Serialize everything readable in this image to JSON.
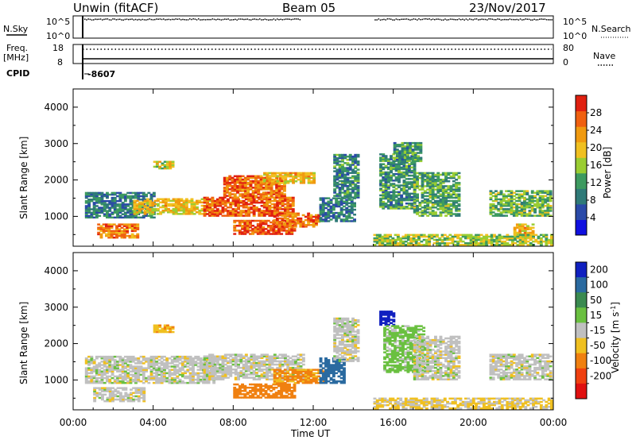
{
  "header": {
    "station": "Unwin (fitACF)",
    "beam": "Beam 05",
    "date": "23/Nov/2017"
  },
  "strip": {
    "nsky_label": "N.Sky",
    "nsky_ticks": [
      "10^5",
      "10^0"
    ],
    "nsearch_label": "N.Search",
    "nsearch_ticks": [
      "10^5",
      "10^0"
    ],
    "freq_label": "Freq.",
    "freq_unit": "[MHz]",
    "freq_ticks": [
      "18",
      "8"
    ],
    "nave_label": "Nave",
    "nave_ticks": [
      "80",
      "0"
    ],
    "cpid_label": "CPID",
    "cpid_value": "-8607"
  },
  "chart_data": [
    {
      "type": "heatmap",
      "panel": "power",
      "ylabel": "Slant Range [km]",
      "yticks": [
        1000,
        2000,
        3000,
        4000
      ],
      "ylim": [
        180,
        4500
      ],
      "xlim": [
        0,
        24
      ],
      "colorbar_label": "Power [dB]",
      "colorbar_ticks": [
        4,
        8,
        12,
        16,
        20,
        24,
        28
      ],
      "colorbar_range": [
        0,
        32
      ],
      "colormap": [
        "#1010e0",
        "#2a4aa8",
        "#2f7a78",
        "#3d9a60",
        "#9acd32",
        "#f0c020",
        "#f09a10",
        "#f06010",
        "#e02010"
      ],
      "echo_regions": [
        {
          "t0": 0.2,
          "t1": 4.0,
          "r0": 950,
          "r1": 1650,
          "level": 9
        },
        {
          "t0": 1.2,
          "t1": 3.2,
          "r0": 400,
          "r1": 800,
          "level": 25
        },
        {
          "t0": 3.0,
          "t1": 7.0,
          "r0": 1050,
          "r1": 1500,
          "level": 20
        },
        {
          "t0": 4.0,
          "t1": 5.0,
          "r0": 2300,
          "r1": 2500,
          "level": 18
        },
        {
          "t0": 6.5,
          "t1": 11.0,
          "r0": 1000,
          "r1": 1500,
          "level": 27
        },
        {
          "t0": 7.5,
          "t1": 10.5,
          "r0": 1500,
          "r1": 2100,
          "level": 26
        },
        {
          "t0": 8.0,
          "t1": 11.0,
          "r0": 500,
          "r1": 900,
          "level": 28
        },
        {
          "t0": 9.5,
          "t1": 12.0,
          "r0": 1900,
          "r1": 2200,
          "level": 21
        },
        {
          "t0": 10.0,
          "t1": 12.3,
          "r0": 700,
          "r1": 1100,
          "level": 26
        },
        {
          "t0": 12.3,
          "t1": 14.0,
          "r0": 850,
          "r1": 1500,
          "level": 9
        },
        {
          "t0": 13.0,
          "t1": 14.2,
          "r0": 1500,
          "r1": 2700,
          "level": 10
        },
        {
          "t0": 15.3,
          "t1": 17.0,
          "r0": 1200,
          "r1": 2700,
          "level": 11
        },
        {
          "t0": 16.0,
          "t1": 17.3,
          "r0": 2500,
          "r1": 3000,
          "level": 11
        },
        {
          "t0": 17.0,
          "t1": 19.3,
          "r0": 1000,
          "r1": 2200,
          "level": 13
        },
        {
          "t0": 20.8,
          "t1": 24.0,
          "r0": 1000,
          "r1": 1700,
          "level": 14
        },
        {
          "t0": 22.0,
          "t1": 23.0,
          "r0": 400,
          "r1": 800,
          "level": 20
        },
        {
          "t0": 15.0,
          "t1": 24.0,
          "r0": 200,
          "r1": 500,
          "level": 16
        }
      ]
    },
    {
      "type": "heatmap",
      "panel": "velocity",
      "ylabel": "Slant Range [km]",
      "yticks": [
        1000,
        2000,
        3000,
        4000
      ],
      "ylim": [
        180,
        4500
      ],
      "xlim": [
        0,
        24
      ],
      "colorbar_label": "Velocity [m s-1]",
      "colorbar_ticks": [
        200,
        100,
        50,
        15,
        -15,
        -50,
        -100,
        -200
      ],
      "colorbar_colors": [
        "#1020c0",
        "#2a6aa0",
        "#3a8a50",
        "#6ac040",
        "#c0c0c0",
        "#f0c020",
        "#f08010",
        "#f04010",
        "#e01010"
      ],
      "echo_regions": [
        {
          "t0": 0.2,
          "t1": 7.0,
          "r0": 900,
          "r1": 1650,
          "vel": 0
        },
        {
          "t0": 1.0,
          "t1": 3.5,
          "r0": 400,
          "r1": 800,
          "vel": 0
        },
        {
          "t0": 4.0,
          "t1": 5.0,
          "r0": 2300,
          "r1": 2500,
          "vel": -40
        },
        {
          "t0": 6.5,
          "t1": 11.5,
          "r0": 1000,
          "r1": 1700,
          "vel": 0
        },
        {
          "t0": 8.0,
          "t1": 11.0,
          "r0": 500,
          "r1": 900,
          "vel": -80
        },
        {
          "t0": 10.0,
          "t1": 12.5,
          "r0": 900,
          "r1": 1300,
          "vel": -60
        },
        {
          "t0": 12.3,
          "t1": 13.5,
          "r0": 900,
          "r1": 1600,
          "vel": 150
        },
        {
          "t0": 13.0,
          "t1": 14.2,
          "r0": 1500,
          "r1": 2700,
          "vel": 0
        },
        {
          "t0": 15.3,
          "t1": 16.0,
          "r0": 2500,
          "r1": 2900,
          "vel": 220
        },
        {
          "t0": 15.5,
          "t1": 17.5,
          "r0": 1200,
          "r1": 2500,
          "vel": 30
        },
        {
          "t0": 17.0,
          "t1": 19.3,
          "r0": 1000,
          "r1": 2200,
          "vel": 0
        },
        {
          "t0": 20.8,
          "t1": 24.0,
          "r0": 1000,
          "r1": 1700,
          "vel": 0
        },
        {
          "t0": 15.0,
          "t1": 24.0,
          "r0": 200,
          "r1": 500,
          "vel": -20
        }
      ]
    }
  ],
  "xaxis": {
    "label": "Time UT",
    "ticks": [
      "00:00",
      "04:00",
      "08:00",
      "12:00",
      "16:00",
      "20:00",
      "00:00"
    ],
    "tick_hours": [
      0,
      4,
      8,
      12,
      16,
      20,
      24
    ]
  }
}
